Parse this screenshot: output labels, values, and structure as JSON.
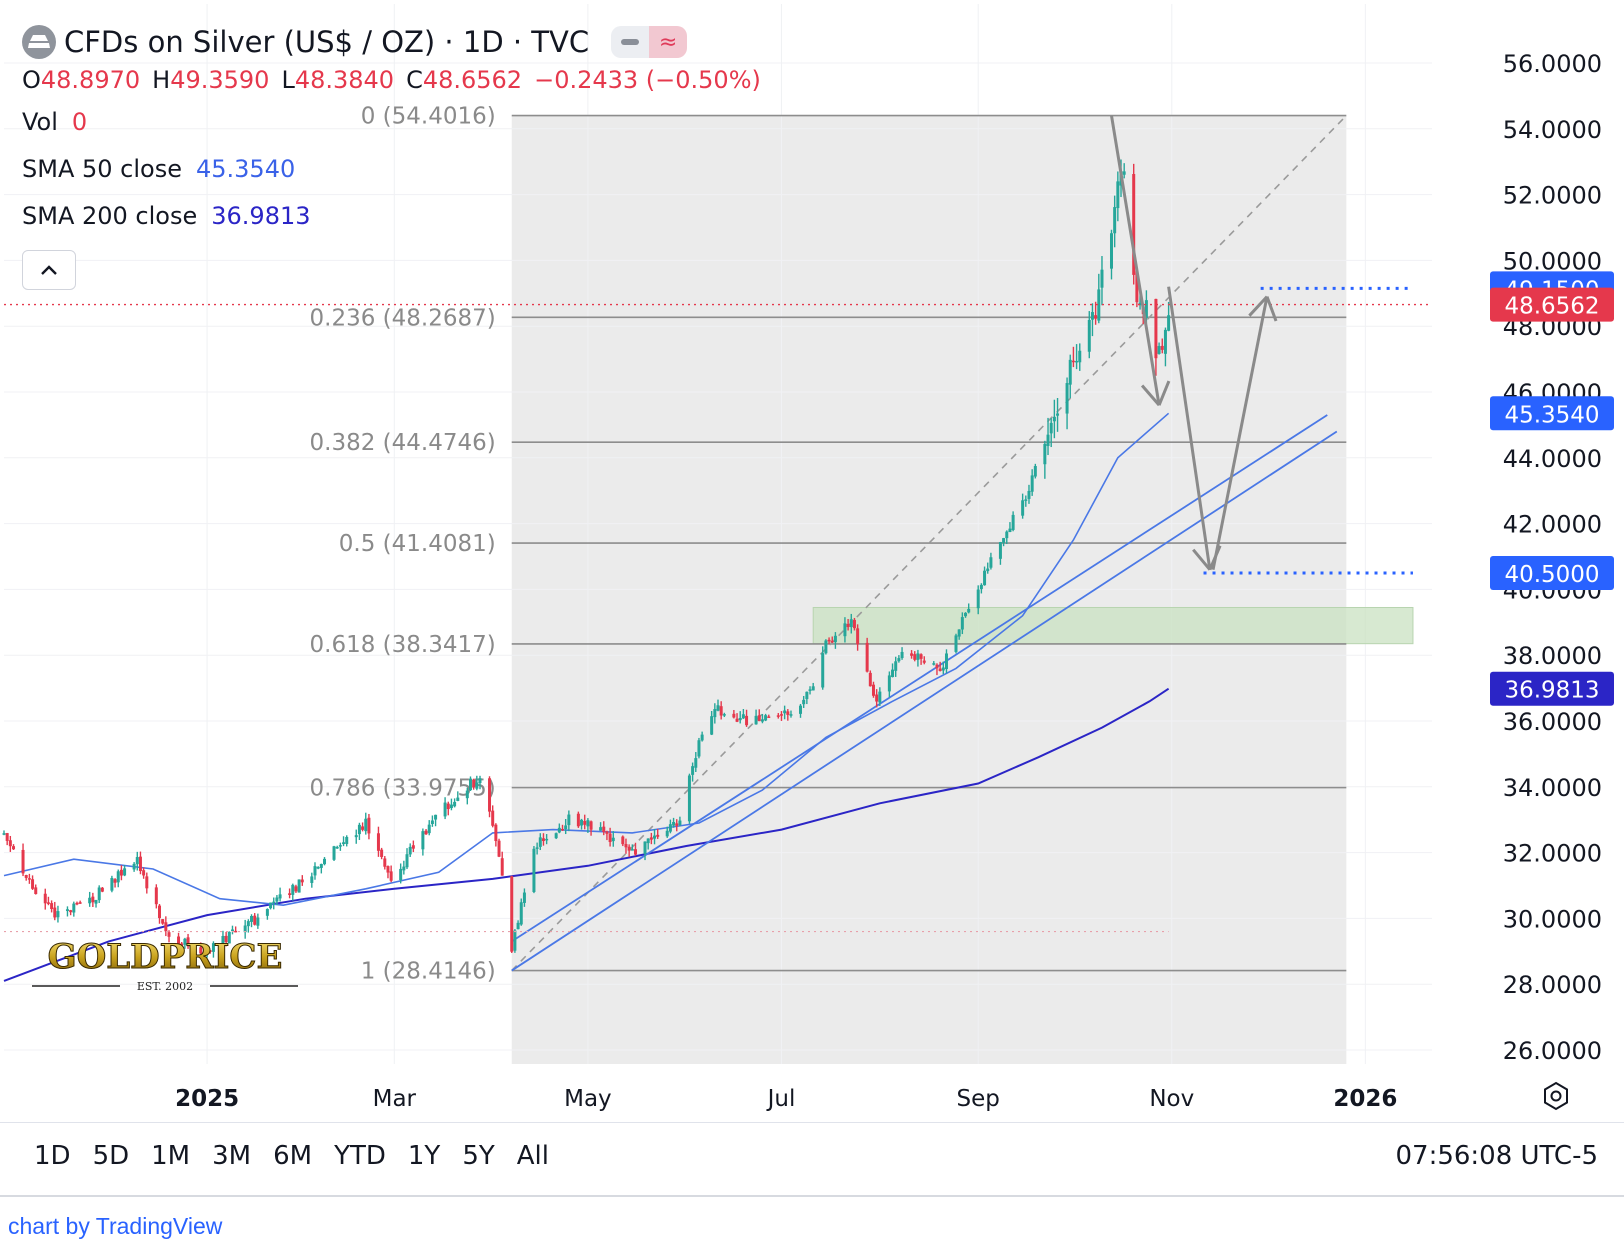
{
  "header": {
    "symbol_title": "CFDs on Silver (US$ / OZ) · 1D · TVC",
    "flag_icon": "minus-icon",
    "wave_icon": "≈",
    "ohlc": {
      "o_label": "O",
      "o_value": "48.8970",
      "h_label": "H",
      "h_value": "49.3590",
      "l_label": "L",
      "l_value": "48.3840",
      "c_label": "C",
      "c_value": "48.6562",
      "change": "−0.2433 (−0.50%)"
    },
    "vol": {
      "label": "Vol",
      "value": "0"
    },
    "sma50": {
      "label": "SMA 50 close",
      "value": "45.3540"
    },
    "sma200": {
      "label": "SMA 200 close",
      "value": "36.9813"
    }
  },
  "time_ranges": [
    "1D",
    "5D",
    "1M",
    "3M",
    "6M",
    "YTD",
    "1Y",
    "5Y",
    "All"
  ],
  "clock": "07:56:08 UTC-5",
  "credit": "chart by TradingView",
  "watermark": {
    "brand": "GOLDPRICE",
    "est": "EST. 2002"
  },
  "colors": {
    "up": "#26a69a",
    "down": "#e5384c",
    "sma50": "#4a78e6",
    "sma200": "#2b25c6",
    "fib": "#8d8d8d",
    "trendline": "#4a78e6",
    "arrow": "#8a8a8a",
    "zone": "#c9e2c2"
  },
  "chart_data": {
    "type": "candlestick",
    "title": "CFDs on Silver (US$ / OZ) · 1D · TVC",
    "price_scale": {
      "ticks": [
        "56.0000",
        "54.0000",
        "52.0000",
        "50.0000",
        "48.0000",
        "46.0000",
        "44.0000",
        "42.0000",
        "40.0000",
        "38.0000",
        "36.0000",
        "34.0000",
        "32.0000",
        "30.0000",
        "28.0000",
        "26.0000"
      ],
      "range": [
        25.2,
        57.0
      ]
    },
    "time_axis": {
      "labels": [
        {
          "label": "2025",
          "date": "2025-01-01",
          "bold": true
        },
        {
          "label": "Mar",
          "date": "2025-03-01",
          "bold": false
        },
        {
          "label": "May",
          "date": "2025-05-01",
          "bold": false
        },
        {
          "label": "Jul",
          "date": "2025-07-01",
          "bold": false
        },
        {
          "label": "Sep",
          "date": "2025-09-01",
          "bold": false
        },
        {
          "label": "Nov",
          "date": "2025-11-01",
          "bold": false
        },
        {
          "label": "2026",
          "date": "2026-01-01",
          "bold": true
        }
      ],
      "range": [
        "2024-10-29",
        "2026-01-22"
      ]
    },
    "last_price": 48.6562,
    "price_badges": [
      {
        "label": "49.1500",
        "value": 49.15,
        "color": "#2962ff"
      },
      {
        "label": "48.6562",
        "value": 48.6562,
        "color": "#e5384c"
      },
      {
        "label": "45.3540",
        "value": 45.354,
        "color": "#2962ff"
      },
      {
        "label": "40.5000",
        "value": 40.5,
        "color": "#2962ff"
      },
      {
        "label": "36.9813",
        "value": 36.9813,
        "color": "#2b25c6"
      }
    ],
    "fib_retracement": {
      "start_date": "2025-04-07",
      "end_date": "2025-12-26",
      "levels": [
        {
          "label": "0 (54.4016)",
          "value": 54.4016
        },
        {
          "label": "0.236 (48.2687)",
          "value": 48.2687
        },
        {
          "label": "0.382 (44.4746)",
          "value": 44.4746
        },
        {
          "label": "0.5 (41.4081)",
          "value": 41.4081
        },
        {
          "label": "0.618 (38.3417)",
          "value": 38.3417
        },
        {
          "label": "0.786 (33.9755)",
          "value": 33.9755
        },
        {
          "label": "1 (28.4146)",
          "value": 28.4146
        }
      ]
    },
    "demand_zone": {
      "from_date": "2025-07-11",
      "to_date": "2026-01-16",
      "low": 38.35,
      "high": 39.45
    },
    "horizontal_levels": [
      {
        "value": 49.15,
        "from_date": "2025-11-29",
        "to_date": "2026-01-16",
        "style": "dotted"
      },
      {
        "value": 40.5,
        "from_date": "2025-11-11",
        "to_date": "2026-01-16",
        "style": "dotted"
      },
      {
        "value": 29.6,
        "from_date": "2024-10-29",
        "to_date": "2025-10-31",
        "style": "dotted-faint"
      }
    ],
    "trend_lines": [
      {
        "from": [
          "2025-04-07",
          28.4146
        ],
        "to": [
          "2025-12-23",
          44.8
        ]
      },
      {
        "from": [
          "2025-04-07",
          29.3
        ],
        "to": [
          "2025-12-20",
          45.3
        ]
      }
    ],
    "diagonal": {
      "from": [
        "2025-04-07",
        28.4146
      ],
      "to": [
        "2025-12-26",
        54.4016
      ]
    },
    "scenario_arrows": [
      {
        "from": [
          "2025-10-13",
          54.4
        ],
        "to": [
          "2025-10-28",
          45.6
        ]
      },
      {
        "from": [
          "2025-10-31",
          49.2
        ],
        "to": [
          "2025-11-13",
          40.6
        ]
      },
      {
        "from": [
          "2025-11-14",
          40.6
        ],
        "to": [
          "2025-12-01",
          48.9
        ]
      }
    ],
    "sma200": [
      [
        "2024-10-29",
        28.1
      ],
      [
        "2024-12-01",
        29.3
      ],
      [
        "2025-01-01",
        30.1
      ],
      [
        "2025-02-01",
        30.6
      ],
      [
        "2025-03-01",
        30.9
      ],
      [
        "2025-04-01",
        31.2
      ],
      [
        "2025-05-01",
        31.6
      ],
      [
        "2025-06-01",
        32.2
      ],
      [
        "2025-07-01",
        32.7
      ],
      [
        "2025-08-01",
        33.5
      ],
      [
        "2025-09-01",
        34.1
      ],
      [
        "2025-09-20",
        34.9
      ],
      [
        "2025-10-10",
        35.8
      ],
      [
        "2025-10-25",
        36.6
      ],
      [
        "2025-10-31",
        36.9813
      ]
    ],
    "sma50": [
      [
        "2024-10-29",
        31.3
      ],
      [
        "2024-11-20",
        31.8
      ],
      [
        "2024-12-15",
        31.5
      ],
      [
        "2025-01-05",
        30.6
      ],
      [
        "2025-01-25",
        30.4
      ],
      [
        "2025-02-20",
        30.9
      ],
      [
        "2025-03-15",
        31.4
      ],
      [
        "2025-04-01",
        32.6
      ],
      [
        "2025-04-20",
        32.7
      ],
      [
        "2025-05-15",
        32.6
      ],
      [
        "2025-06-05",
        32.9
      ],
      [
        "2025-06-25",
        33.9
      ],
      [
        "2025-07-15",
        35.5
      ],
      [
        "2025-08-05",
        36.6
      ],
      [
        "2025-08-25",
        37.6
      ],
      [
        "2025-09-15",
        39.2
      ],
      [
        "2025-10-01",
        41.5
      ],
      [
        "2025-10-15",
        44.0
      ],
      [
        "2025-10-31",
        45.354
      ]
    ],
    "path_anchors": [
      [
        "2024-10-29",
        32.6
      ],
      [
        "2024-11-08",
        30.7
      ],
      [
        "2024-11-15",
        30.1
      ],
      [
        "2024-11-26",
        30.6
      ],
      [
        "2024-12-10",
        31.8
      ],
      [
        "2024-12-20",
        29.4
      ],
      [
        "2024-12-31",
        29.0
      ],
      [
        "2025-01-15",
        29.9
      ],
      [
        "2025-01-31",
        31.1
      ],
      [
        "2025-02-10",
        32.2
      ],
      [
        "2025-02-20",
        32.9
      ],
      [
        "2025-02-28",
        31.1
      ],
      [
        "2025-03-10",
        32.6
      ],
      [
        "2025-03-20",
        33.7
      ],
      [
        "2025-03-28",
        34.3
      ],
      [
        "2025-04-03",
        31.9
      ],
      [
        "2025-04-07",
        29.1
      ],
      [
        "2025-04-14",
        32.2
      ],
      [
        "2025-04-25",
        33.0
      ],
      [
        "2025-05-05",
        32.7
      ],
      [
        "2025-05-15",
        32.0
      ],
      [
        "2025-05-30",
        33.0
      ],
      [
        "2025-06-05",
        35.4
      ],
      [
        "2025-06-10",
        36.4
      ],
      [
        "2025-06-20",
        36.0
      ],
      [
        "2025-07-01",
        36.1
      ],
      [
        "2025-07-10",
        36.8
      ],
      [
        "2025-07-14",
        38.2
      ],
      [
        "2025-07-23",
        39.0
      ],
      [
        "2025-07-31",
        36.6
      ],
      [
        "2025-08-08",
        38.2
      ],
      [
        "2025-08-20",
        37.6
      ],
      [
        "2025-08-29",
        39.4
      ],
      [
        "2025-09-05",
        40.9
      ],
      [
        "2025-09-15",
        42.6
      ],
      [
        "2025-09-22",
        44.5
      ],
      [
        "2025-09-30",
        46.6
      ],
      [
        "2025-10-08",
        48.6
      ],
      [
        "2025-10-14",
        51.8
      ],
      [
        "2025-10-17",
        52.5
      ],
      [
        "2025-10-21",
        48.4
      ],
      [
        "2025-10-24",
        48.4
      ],
      [
        "2025-10-28",
        47.1
      ],
      [
        "2025-10-31",
        48.6562
      ]
    ]
  }
}
